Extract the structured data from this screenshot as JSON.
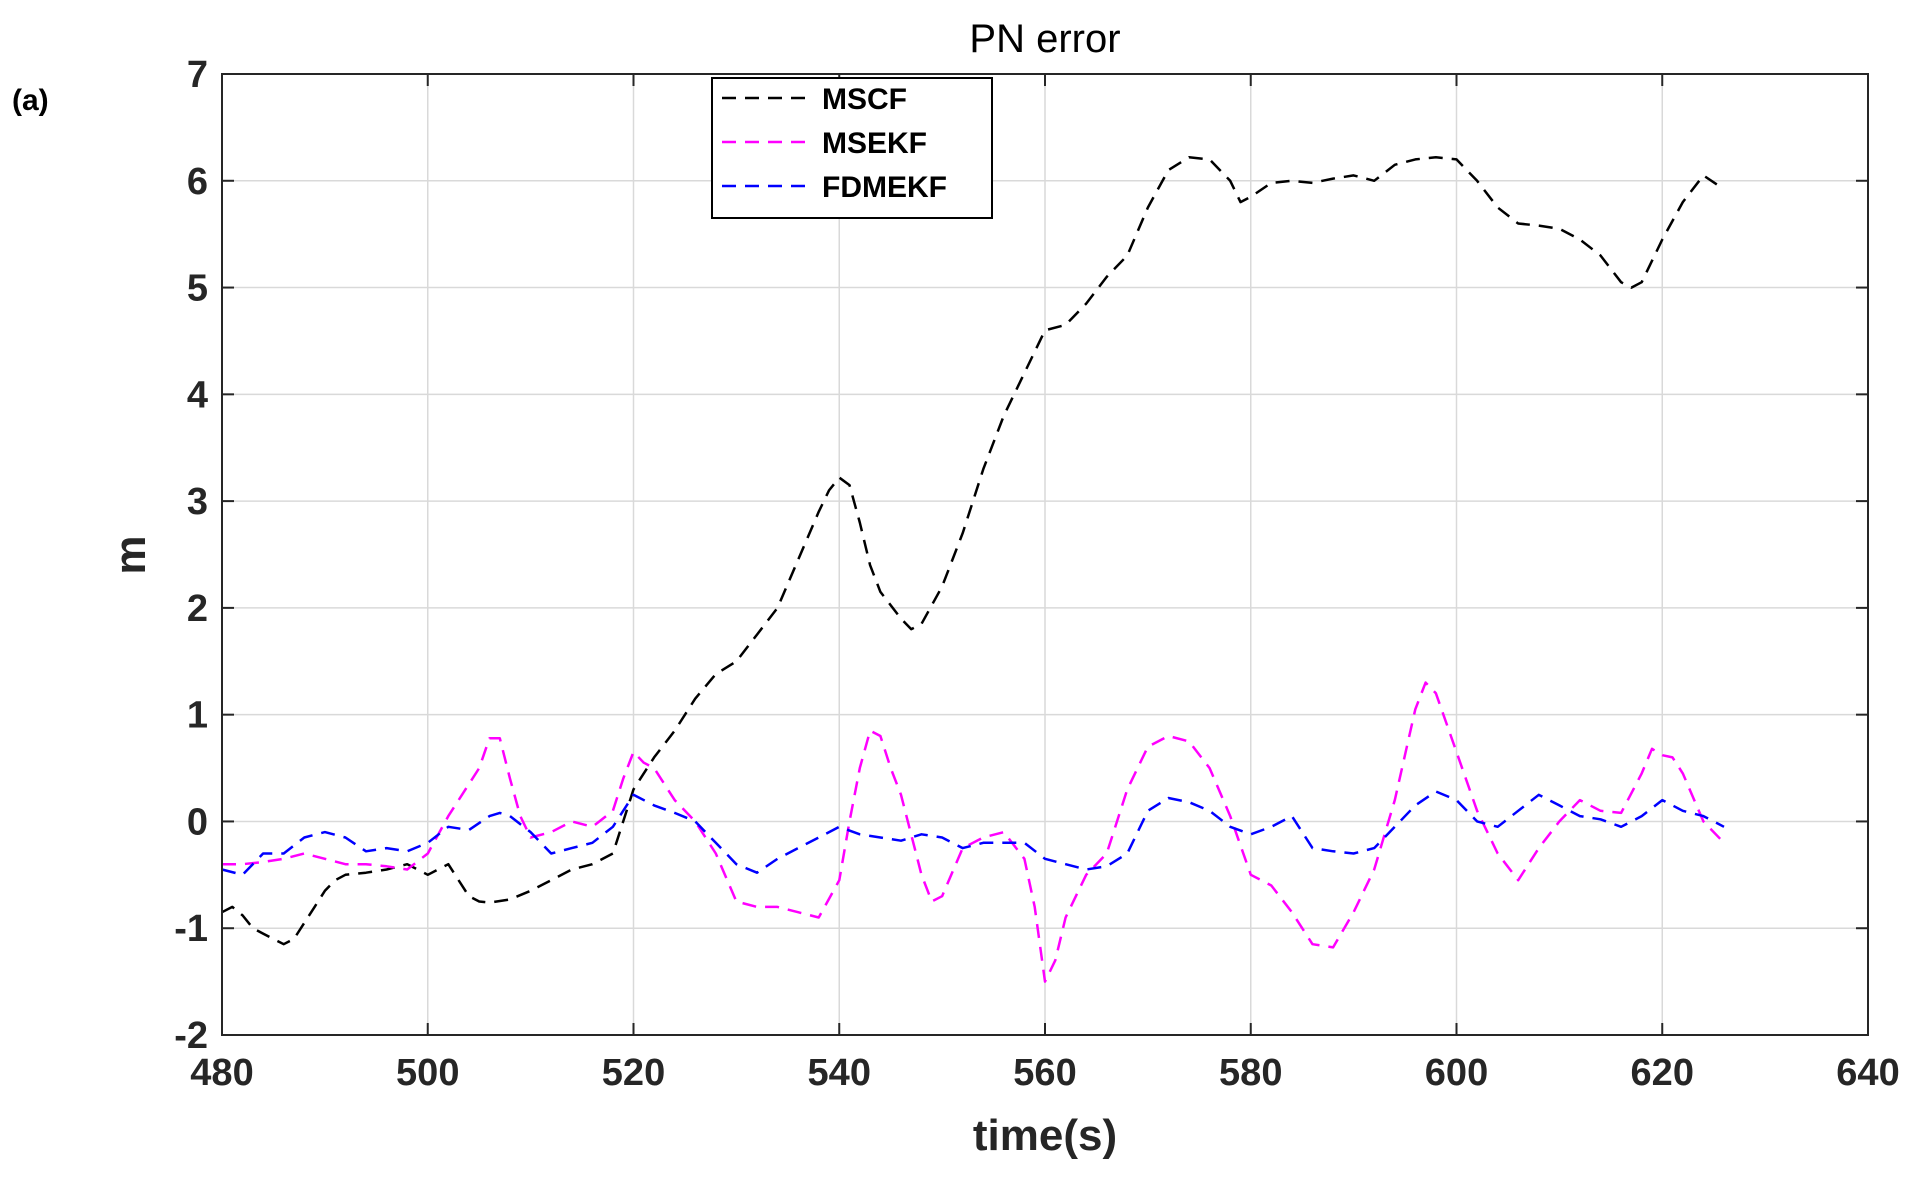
{
  "panel_label": "(a)",
  "chart_data": {
    "type": "line",
    "title": "PN error",
    "xlabel": "time(s)",
    "ylabel": "m",
    "xlim": [
      480,
      640
    ],
    "ylim": [
      -2,
      7
    ],
    "xticks": [
      480,
      500,
      520,
      540,
      560,
      580,
      600,
      620,
      640
    ],
    "yticks": [
      -2,
      -1,
      0,
      1,
      2,
      3,
      4,
      5,
      6,
      7
    ],
    "grid": true,
    "legend_position": "top-center",
    "series": [
      {
        "name": "MSCF",
        "color": "#000000",
        "dash": "dashed",
        "x": [
          480,
          481,
          482,
          483,
          484,
          485,
          486,
          487,
          488,
          489,
          490,
          491,
          492,
          494,
          496,
          498,
          500,
          502,
          504,
          505,
          506,
          508,
          510,
          512,
          514,
          516,
          518,
          520,
          522,
          524,
          526,
          528,
          530,
          532,
          534,
          536,
          538,
          539,
          540,
          541,
          542,
          543,
          544,
          546,
          547,
          548,
          550,
          552,
          554,
          556,
          558,
          560,
          562,
          564,
          566,
          568,
          570,
          572,
          574,
          576,
          578,
          579,
          580,
          582,
          584,
          586,
          588,
          590,
          592,
          594,
          596,
          598,
          600,
          602,
          604,
          606,
          608,
          610,
          612,
          614,
          616,
          617,
          618,
          620,
          622,
          624,
          626
        ],
        "y": [
          -0.85,
          -0.8,
          -0.88,
          -1.0,
          -1.05,
          -1.1,
          -1.15,
          -1.1,
          -0.95,
          -0.8,
          -0.65,
          -0.55,
          -0.5,
          -0.48,
          -0.45,
          -0.4,
          -0.5,
          -0.4,
          -0.7,
          -0.75,
          -0.76,
          -0.73,
          -0.65,
          -0.55,
          -0.45,
          -0.4,
          -0.3,
          0.3,
          0.6,
          0.85,
          1.15,
          1.38,
          1.5,
          1.75,
          2.0,
          2.45,
          2.9,
          3.1,
          3.22,
          3.15,
          2.8,
          2.4,
          2.15,
          1.9,
          1.8,
          1.85,
          2.2,
          2.7,
          3.3,
          3.8,
          4.2,
          4.6,
          4.65,
          4.85,
          5.1,
          5.3,
          5.75,
          6.1,
          6.22,
          6.2,
          6.0,
          5.8,
          5.85,
          5.98,
          6.0,
          5.98,
          6.02,
          6.05,
          6.0,
          6.15,
          6.2,
          6.22,
          6.2,
          6.0,
          5.75,
          5.6,
          5.58,
          5.55,
          5.45,
          5.3,
          5.05,
          5.0,
          5.05,
          5.45,
          5.8,
          6.05,
          5.92
        ]
      },
      {
        "name": "MSEKF",
        "color": "#ff00ff",
        "dash": "dashed",
        "x": [
          480,
          482,
          484,
          486,
          488,
          490,
          492,
          494,
          496,
          498,
          500,
          502,
          504,
          505,
          506,
          507,
          508,
          509,
          510,
          512,
          514,
          516,
          518,
          519,
          520,
          521,
          522,
          524,
          526,
          528,
          530,
          532,
          534,
          536,
          538,
          540,
          541,
          542,
          543,
          544,
          545,
          546,
          548,
          549,
          550,
          552,
          554,
          556,
          558,
          559,
          560,
          561,
          562,
          564,
          566,
          568,
          570,
          572,
          574,
          576,
          578,
          580,
          582,
          584,
          586,
          588,
          590,
          592,
          594,
          596,
          597,
          598,
          600,
          602,
          604,
          606,
          608,
          610,
          612,
          614,
          616,
          618,
          619,
          620,
          621,
          622,
          624,
          626
        ],
        "y": [
          -0.4,
          -0.4,
          -0.38,
          -0.35,
          -0.3,
          -0.35,
          -0.4,
          -0.4,
          -0.42,
          -0.45,
          -0.3,
          0.05,
          0.35,
          0.5,
          0.78,
          0.78,
          0.4,
          0.05,
          -0.15,
          -0.1,
          0.0,
          -0.05,
          0.1,
          0.4,
          0.65,
          0.55,
          0.5,
          0.2,
          0.0,
          -0.3,
          -0.75,
          -0.8,
          -0.8,
          -0.85,
          -0.9,
          -0.55,
          0.0,
          0.5,
          0.85,
          0.8,
          0.5,
          0.25,
          -0.5,
          -0.75,
          -0.7,
          -0.25,
          -0.15,
          -0.1,
          -0.35,
          -0.8,
          -1.5,
          -1.3,
          -0.9,
          -0.5,
          -0.3,
          0.3,
          0.7,
          0.8,
          0.75,
          0.5,
          0.05,
          -0.5,
          -0.6,
          -0.85,
          -1.15,
          -1.18,
          -0.85,
          -0.45,
          0.2,
          1.05,
          1.3,
          1.2,
          0.65,
          0.1,
          -0.3,
          -0.55,
          -0.25,
          0.0,
          0.2,
          0.1,
          0.08,
          0.45,
          0.68,
          0.62,
          0.6,
          0.45,
          0.0,
          -0.2
        ]
      },
      {
        "name": "FDMEKF",
        "color": "#0000ff",
        "dash": "dashed",
        "x": [
          480,
          482,
          484,
          486,
          488,
          490,
          492,
          494,
          496,
          498,
          500,
          502,
          504,
          506,
          507,
          508,
          510,
          512,
          514,
          516,
          518,
          520,
          522,
          524,
          526,
          528,
          530,
          532,
          534,
          536,
          538,
          540,
          542,
          544,
          546,
          548,
          550,
          552,
          554,
          556,
          558,
          560,
          562,
          564,
          566,
          568,
          570,
          572,
          574,
          576,
          578,
          580,
          582,
          584,
          586,
          588,
          590,
          592,
          594,
          596,
          598,
          600,
          602,
          604,
          606,
          608,
          610,
          612,
          614,
          616,
          618,
          620,
          622,
          624,
          626
        ],
        "y": [
          -0.45,
          -0.5,
          -0.3,
          -0.3,
          -0.15,
          -0.1,
          -0.15,
          -0.28,
          -0.25,
          -0.28,
          -0.2,
          -0.05,
          -0.08,
          0.05,
          0.08,
          0.05,
          -0.1,
          -0.3,
          -0.25,
          -0.2,
          -0.05,
          0.25,
          0.15,
          0.08,
          0.0,
          -0.2,
          -0.4,
          -0.48,
          -0.35,
          -0.25,
          -0.15,
          -0.05,
          -0.12,
          -0.15,
          -0.18,
          -0.12,
          -0.15,
          -0.25,
          -0.2,
          -0.2,
          -0.2,
          -0.35,
          -0.4,
          -0.45,
          -0.42,
          -0.3,
          0.1,
          0.22,
          0.18,
          0.1,
          -0.05,
          -0.12,
          -0.05,
          0.05,
          -0.25,
          -0.28,
          -0.3,
          -0.25,
          -0.05,
          0.15,
          0.28,
          0.2,
          0.0,
          -0.05,
          0.1,
          0.25,
          0.15,
          0.05,
          0.02,
          -0.05,
          0.05,
          0.2,
          0.1,
          0.05,
          -0.05
        ]
      }
    ]
  }
}
